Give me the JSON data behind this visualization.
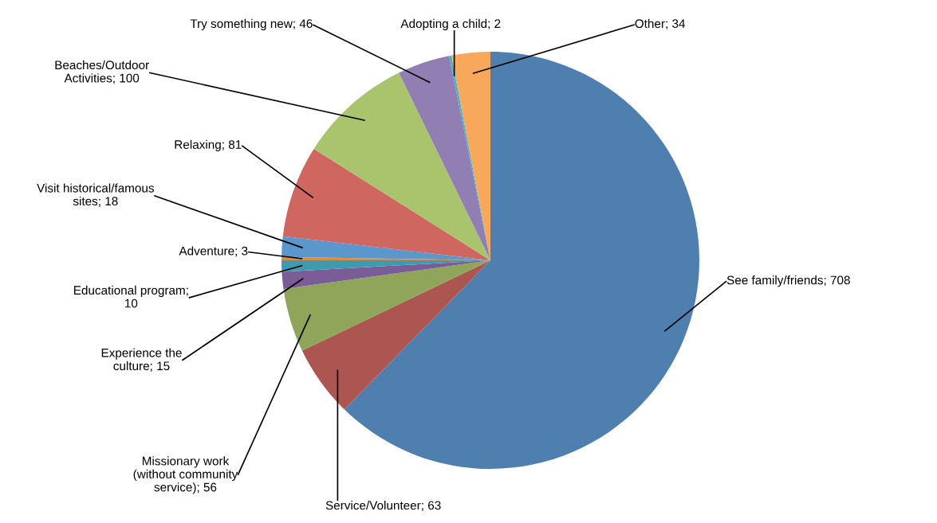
{
  "chart_data": {
    "type": "pie",
    "categories": [
      "See family/friends; 708",
      "Service/Volunteer; 63",
      "Missionary work\n(without community\nservice); 56",
      "Experience the\nculture; 15",
      "Educational program;\n10",
      "Adventure; 3",
      "Visit historical/famous\nsites; 18",
      "Relaxing; 81",
      "Beaches/Outdoor\nActivities; 100",
      "Try something new; 46",
      "Adopting a child; 2",
      "Other; 34"
    ],
    "values": [
      708,
      63,
      56,
      15,
      10,
      3,
      18,
      81,
      100,
      46,
      2,
      34
    ],
    "colors": [
      "#4f7fae",
      "#ad5550",
      "#8fa65a",
      "#7a5c96",
      "#3f9ab0",
      "#e08c3f",
      "#5b96cc",
      "#cf6660",
      "#a9c46c",
      "#917eb2",
      "#3fb4cf",
      "#f8a85a"
    ]
  }
}
